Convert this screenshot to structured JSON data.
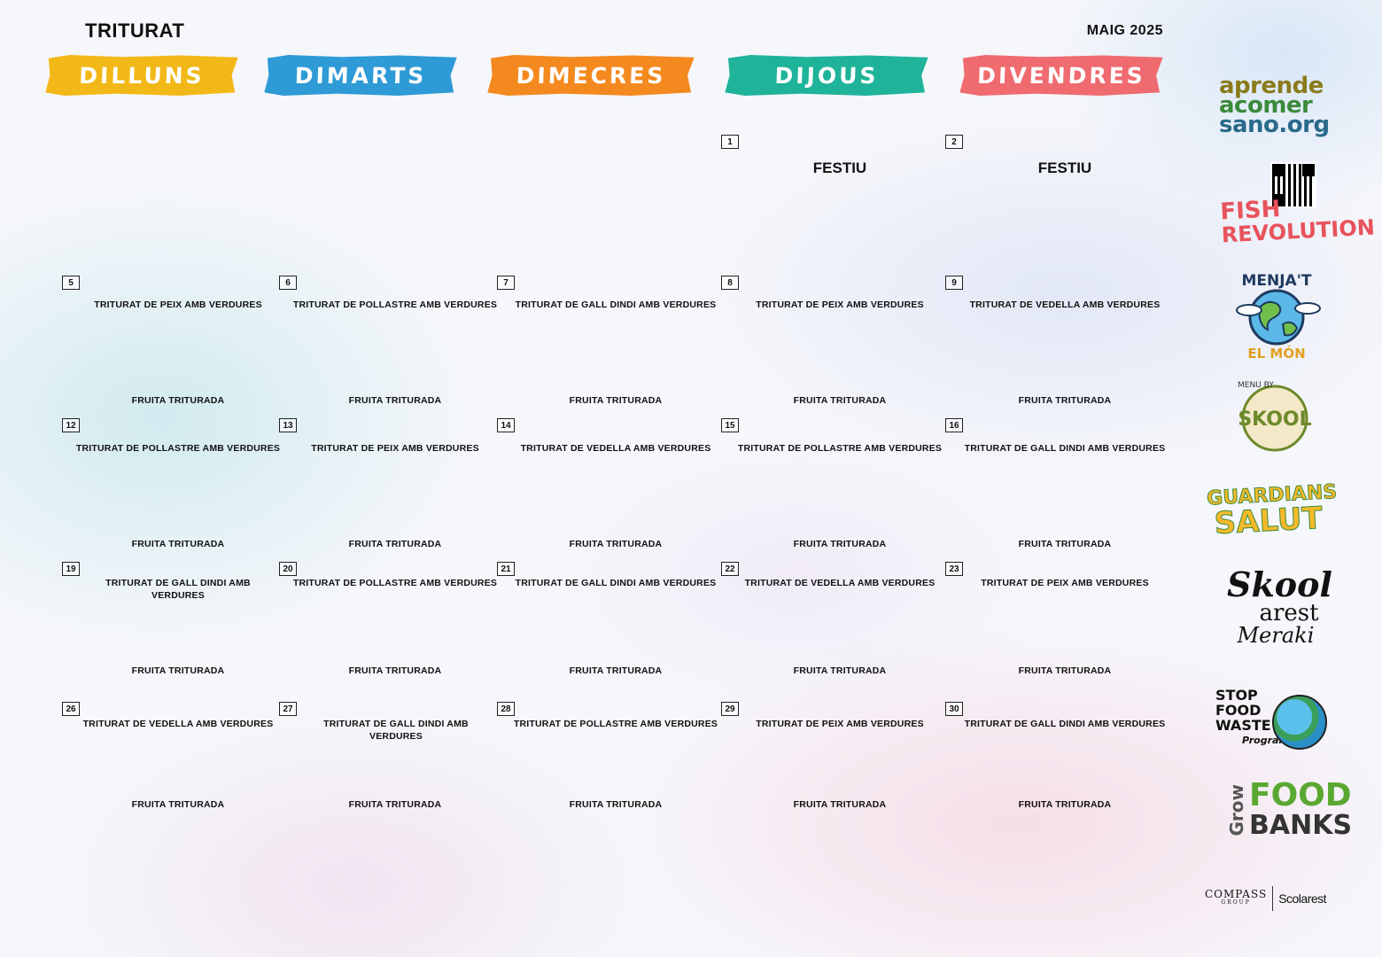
{
  "header": {
    "title": "TRITURAT",
    "month": "MAIG 2025"
  },
  "weekdays": [
    {
      "label": "DILLUNS",
      "color": "#f2b817"
    },
    {
      "label": "DIMARTS",
      "color": "#2e9ad6"
    },
    {
      "label": "DIMECRES",
      "color": "#f4891f"
    },
    {
      "label": "DIJOUS",
      "color": "#1fb39a"
    },
    {
      "label": "DIVENDRES",
      "color": "#ef6b6f"
    }
  ],
  "weeks": [
    {
      "days": [
        null,
        null,
        null,
        {
          "num": "1",
          "holiday": "FESTIU"
        },
        {
          "num": "2",
          "holiday": "FESTIU"
        }
      ]
    },
    {
      "days": [
        {
          "num": "5",
          "meal": "TRITURAT DE PEIX AMB VERDURES",
          "fruit": "FRUITA TRITURADA"
        },
        {
          "num": "6",
          "meal": "TRITURAT DE POLLASTRE AMB VERDURES",
          "fruit": "FRUITA TRITURADA"
        },
        {
          "num": "7",
          "meal": "TRITURAT DE GALL DINDI AMB VERDURES",
          "fruit": "FRUITA TRITURADA"
        },
        {
          "num": "8",
          "meal": "TRITURAT DE PEIX AMB VERDURES",
          "fruit": "FRUITA TRITURADA"
        },
        {
          "num": "9",
          "meal": "TRITURAT DE VEDELLA AMB VERDURES",
          "fruit": "FRUITA TRITURADA"
        }
      ]
    },
    {
      "days": [
        {
          "num": "12",
          "meal": "TRITURAT DE POLLASTRE AMB VERDURES",
          "fruit": "FRUITA TRITURADA"
        },
        {
          "num": "13",
          "meal": "TRITURAT DE PEIX AMB VERDURES",
          "fruit": "FRUITA TRITURADA"
        },
        {
          "num": "14",
          "meal": "TRITURAT DE VEDELLA AMB VERDURES",
          "fruit": "FRUITA TRITURADA"
        },
        {
          "num": "15",
          "meal": "TRITURAT DE POLLASTRE AMB VERDURES",
          "fruit": "FRUITA TRITURADA"
        },
        {
          "num": "16",
          "meal": "TRITURAT DE GALL DINDI AMB VERDURES",
          "fruit": "FRUITA TRITURADA"
        }
      ]
    },
    {
      "days": [
        {
          "num": "19",
          "meal": "TRITURAT DE GALL DINDI AMB VERDURES",
          "fruit": "FRUITA TRITURADA"
        },
        {
          "num": "20",
          "meal": "TRITURAT DE POLLASTRE AMB VERDURES",
          "fruit": "FRUITA TRITURADA"
        },
        {
          "num": "21",
          "meal": "TRITURAT DE GALL DINDI AMB VERDURES",
          "fruit": "FRUITA TRITURADA"
        },
        {
          "num": "22",
          "meal": "TRITURAT DE VEDELLA AMB VERDURES",
          "fruit": "FRUITA TRITURADA"
        },
        {
          "num": "23",
          "meal": "TRITURAT DE PEIX AMB VERDURES",
          "fruit": "FRUITA TRITURADA"
        }
      ]
    },
    {
      "days": [
        {
          "num": "26",
          "meal": "TRITURAT DE VEDELLA AMB VERDURES",
          "fruit": "FRUITA TRITURADA"
        },
        {
          "num": "27",
          "meal": "TRITURAT DE GALL DINDI AMB VERDURES",
          "fruit": "FRUITA TRITURADA"
        },
        {
          "num": "28",
          "meal": "TRITURAT DE POLLASTRE AMB VERDURES",
          "fruit": "FRUITA TRITURADA"
        },
        {
          "num": "29",
          "meal": "TRITURAT DE PEIX AMB VERDURES",
          "fruit": "FRUITA TRITURADA"
        },
        {
          "num": "30",
          "meal": "TRITURAT DE GALL DINDI AMB VERDURES",
          "fruit": "FRUITA TRITURADA"
        }
      ]
    }
  ],
  "logos": {
    "aprende": [
      "aprende",
      "acomer",
      "sano.org"
    ],
    "aprende_colors": [
      "#8a7a1a",
      "#3a8a3a",
      "#2a6a8a"
    ],
    "fish": [
      "FISH",
      "REVOLUTION"
    ],
    "menjat": [
      "MENJA'T",
      "EL MÓN"
    ],
    "skool": [
      "MENU BY",
      "SKOOL"
    ],
    "guardians": [
      "GUARDIANS",
      "SALUT"
    ],
    "skoolarest": [
      "Skool",
      "arest",
      "Meraki"
    ],
    "stopfood": [
      "STOP",
      "FOOD",
      "WASTE",
      "Program"
    ],
    "grow": [
      "Grow",
      "FOOD",
      "BANKS"
    ],
    "compass": [
      "COMPASS",
      "GROUP",
      "Scolarest"
    ]
  }
}
